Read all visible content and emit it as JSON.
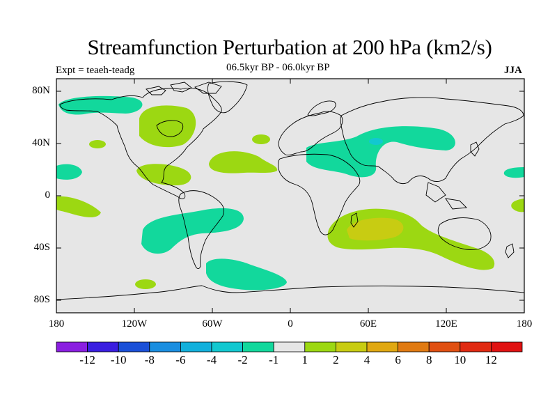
{
  "title": "Streamfunction Perturbation at 200 hPa (km2/s)",
  "left_label": "Expt = teaeh-teadg",
  "center_label": "06.5kyr BP - 06.0kyr BP",
  "right_label": "JJA",
  "map": {
    "projection": "cylindrical-equidistant",
    "lon_range": [
      -180,
      180
    ],
    "lat_range": [
      -90,
      90
    ],
    "background_color": "#e6e6e6",
    "lat_ticks": [
      "80N",
      "40N",
      "0",
      "40S",
      "80S"
    ],
    "lon_ticks": [
      "180",
      "120W",
      "60W",
      "0",
      "60E",
      "120E",
      "180"
    ]
  },
  "colorbar": {
    "labels": [
      "-12",
      "-10",
      "-8",
      "-6",
      "-4",
      "-2",
      "-1",
      "1",
      "2",
      "4",
      "6",
      "8",
      "10",
      "12"
    ],
    "colors": [
      "#8a1ee0",
      "#3a1ee0",
      "#1a50d8",
      "#1a8ee0",
      "#12b0dc",
      "#12c8d0",
      "#12d89c",
      "#e6e6e6",
      "#9cd812",
      "#c8cc12",
      "#e0a812",
      "#e07a12",
      "#e05012",
      "#e02a12",
      "#e01212"
    ]
  },
  "anomalies": [
    {
      "label": "-1 to -2",
      "region": "North Pacific / Alaska",
      "color": "#12d89c"
    },
    {
      "label": "1 to 2",
      "region": "Canada / Hudson Bay",
      "color": "#9cd812"
    },
    {
      "label": "-1 to -2",
      "region": "Central Asia / Middle East",
      "color": "#12d89c"
    },
    {
      "label": "-2 to -4",
      "region": "Caspian core",
      "color": "#12c8d0"
    },
    {
      "label": "1 to 2",
      "region": "Central Atlantic",
      "color": "#9cd812"
    },
    {
      "label": "1 to 2",
      "region": "Gulf of Mexico / Caribbean",
      "color": "#9cd812"
    },
    {
      "label": "-1 to -2",
      "region": "South Pacific / South America",
      "color": "#12d89c"
    },
    {
      "label": "1 to 2",
      "region": "Southern Indian Ocean",
      "color": "#9cd812"
    },
    {
      "label": "2 to 4",
      "region": "Southern Indian Ocean core",
      "color": "#c8cc12"
    },
    {
      "label": "-1 to -2",
      "region": "South Atlantic",
      "color": "#12d89c"
    }
  ]
}
